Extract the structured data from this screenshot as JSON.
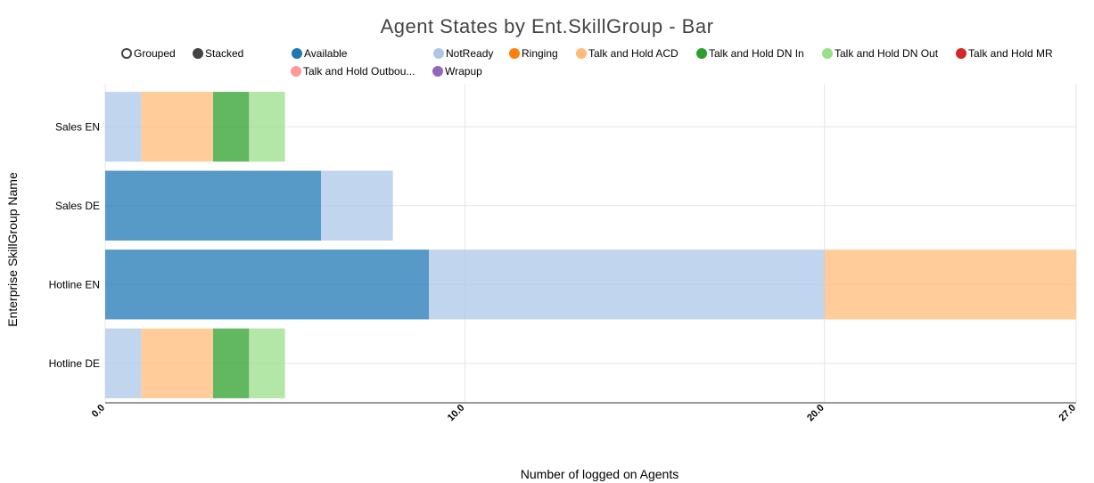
{
  "chart_data": {
    "type": "bar",
    "orientation": "horizontal",
    "stacked": true,
    "title": "Agent States by Ent.SkillGroup - Bar",
    "xlabel": "Number of logged on Agents",
    "ylabel": "Enterprise SkillGroup Name",
    "xlim": [
      0,
      27
    ],
    "xticks": [
      "0.0",
      "10.0",
      "20.0",
      "27.0"
    ],
    "categories": [
      "Sales EN",
      "Sales DE",
      "Hotline EN",
      "Hotline DE"
    ],
    "series": [
      {
        "name": "Available",
        "color": "#1f77b4",
        "values": [
          0,
          6,
          9,
          0
        ]
      },
      {
        "name": "NotReady",
        "color": "#aec7e8",
        "values": [
          1,
          2,
          11,
          1
        ]
      },
      {
        "name": "Ringing",
        "color": "#ff7f0e",
        "values": [
          0,
          0,
          0,
          0
        ]
      },
      {
        "name": "Talk and Hold ACD",
        "color": "#ffbb78",
        "values": [
          2,
          0,
          7,
          2
        ]
      },
      {
        "name": "Talk and Hold DN In",
        "color": "#2ca02c",
        "values": [
          1,
          0,
          0,
          1
        ]
      },
      {
        "name": "Talk and Hold DN Out",
        "color": "#98df8a",
        "values": [
          1,
          0,
          0,
          1
        ]
      },
      {
        "name": "Talk and Hold MR",
        "color": "#d62728",
        "values": [
          0,
          0,
          0,
          0
        ]
      },
      {
        "name": "Talk and Hold Outbou...",
        "color": "#ff9896",
        "values": [
          0,
          0,
          0,
          0
        ]
      },
      {
        "name": "Wrapup",
        "color": "#9467bd",
        "values": [
          0,
          0,
          0,
          0
        ]
      }
    ],
    "grid": true,
    "legend_position": "top"
  },
  "controls": {
    "grouped_label": "Grouped",
    "stacked_label": "Stacked",
    "selected": "Stacked"
  }
}
